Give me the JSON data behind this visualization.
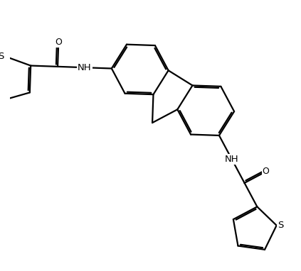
{
  "background_color": "#ffffff",
  "line_color": "#000000",
  "line_width": 1.6,
  "dbo": 0.055,
  "font_size": 9.5,
  "figsize": [
    4.23,
    3.82
  ],
  "dpi": 100,
  "xlim": [
    -1.5,
    8.5
  ],
  "ylim": [
    -1.0,
    8.5
  ]
}
